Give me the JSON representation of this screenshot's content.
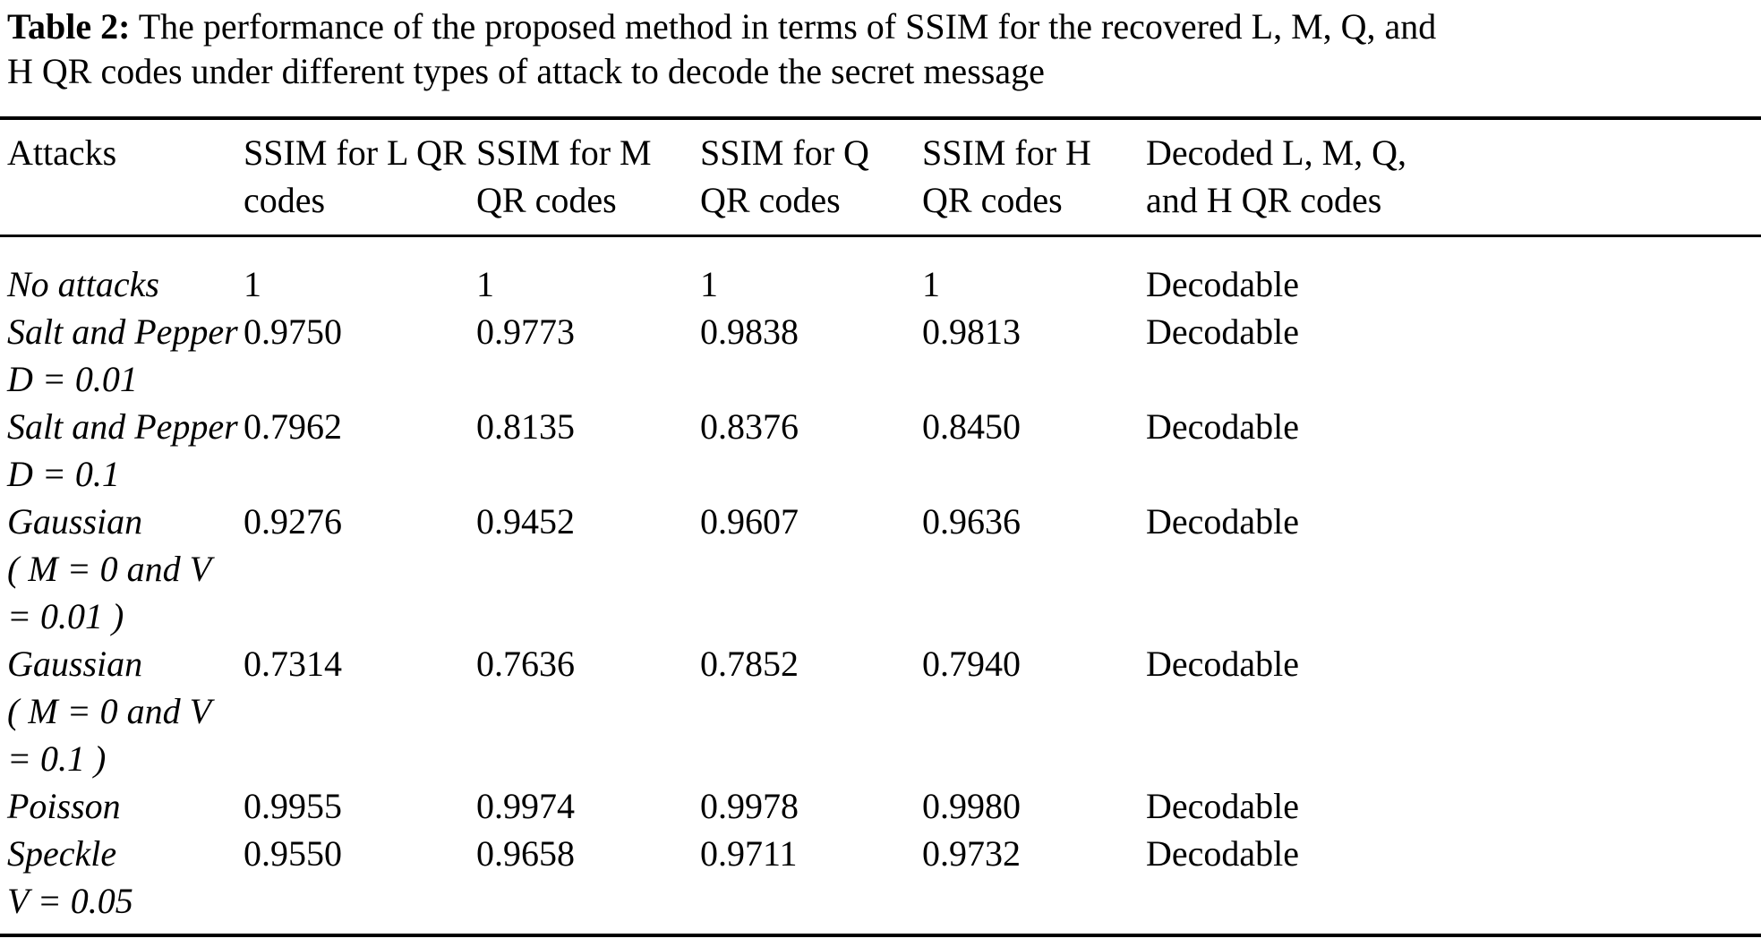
{
  "caption": {
    "label": "Table 2:",
    "text": "The performance of the proposed method in terms of SSIM for the recovered L, M, Q, and\nH QR codes under different types of attack to decode the secret message"
  },
  "table": {
    "headers": [
      {
        "key": "attack",
        "label": "Attacks"
      },
      {
        "key": "ssim_l",
        "label": "SSIM for L QR\ncodes"
      },
      {
        "key": "ssim_m",
        "label": "SSIM for M\nQR codes"
      },
      {
        "key": "ssim_q",
        "label": "SSIM for Q\nQR codes"
      },
      {
        "key": "ssim_h",
        "label": "SSIM for H\nQR codes"
      },
      {
        "key": "decoded",
        "label": "Decoded L, M, Q,\nand H QR codes"
      }
    ],
    "rows": [
      {
        "attack": "No attacks",
        "ssim_l": "1",
        "ssim_m": "1",
        "ssim_q": "1",
        "ssim_h": "1",
        "decoded": "Decodable"
      },
      {
        "attack": "Salt and Pepper\nD = 0.01",
        "ssim_l": "0.9750",
        "ssim_m": "0.9773",
        "ssim_q": "0.9838",
        "ssim_h": "0.9813",
        "decoded": "Decodable"
      },
      {
        "attack": "Salt and Pepper\nD = 0.1",
        "ssim_l": "0.7962",
        "ssim_m": "0.8135",
        "ssim_q": "0.8376",
        "ssim_h": "0.8450",
        "decoded": "Decodable"
      },
      {
        "attack": "Gaussian\n( M = 0 and V\n= 0.01 )",
        "ssim_l": "0.9276",
        "ssim_m": "0.9452",
        "ssim_q": "0.9607",
        "ssim_h": "0.9636",
        "decoded": "Decodable"
      },
      {
        "attack": "Gaussian\n( M = 0 and V\n= 0.1 )",
        "ssim_l": "0.7314",
        "ssim_m": "0.7636",
        "ssim_q": "0.7852",
        "ssim_h": "0.7940",
        "decoded": "Decodable"
      },
      {
        "attack": "Poisson",
        "ssim_l": "0.9955",
        "ssim_m": "0.9974",
        "ssim_q": "0.9978",
        "ssim_h": "0.9980",
        "decoded": "Decodable"
      },
      {
        "attack": "Speckle\nV = 0.05",
        "ssim_l": "0.9550",
        "ssim_m": "0.9658",
        "ssim_q": "0.9711",
        "ssim_h": "0.9732",
        "decoded": "Decodable"
      }
    ]
  },
  "colors": {
    "text": "#000000",
    "background": "#ffffff",
    "rule": "#000000"
  }
}
